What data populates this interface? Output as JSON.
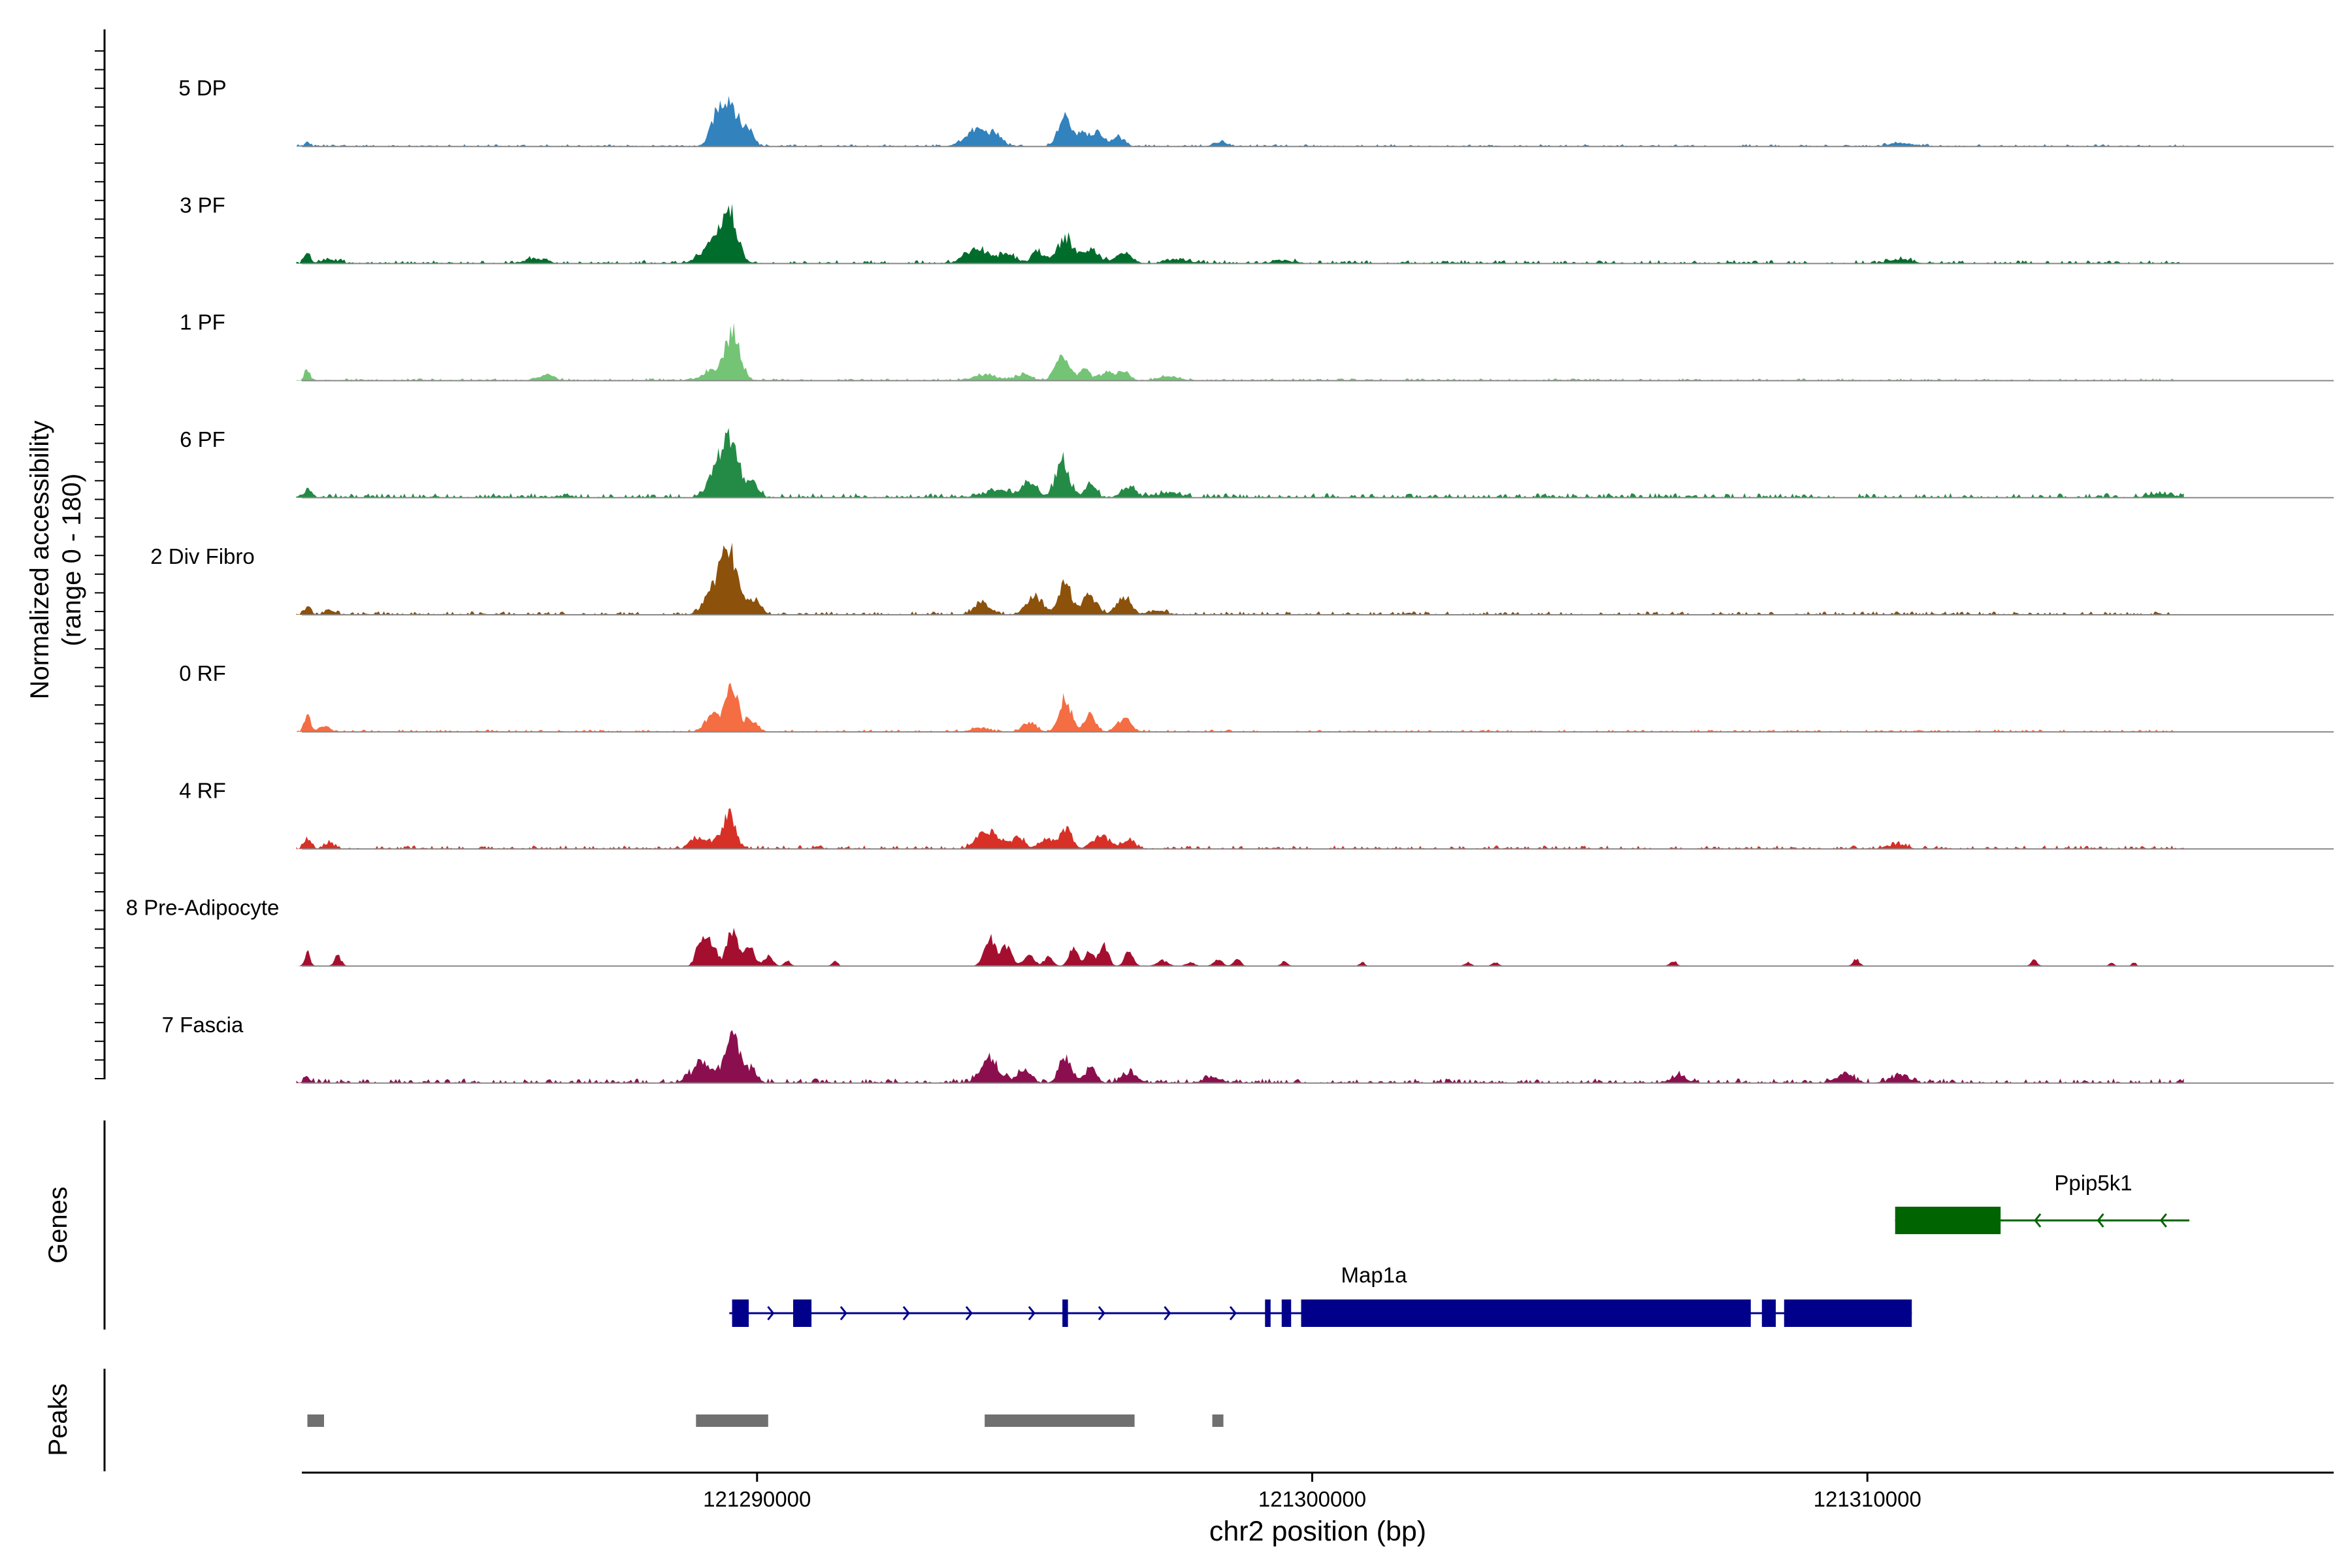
{
  "chart_data": {
    "type": "area",
    "title": "",
    "ylabel_line1": "Normalized accessibility",
    "ylabel_line2": "(range 0 - 180)",
    "ylim": [
      0,
      180
    ],
    "xlabel": "chr2 position (bp)",
    "xlim": [
      121281800,
      121318400
    ],
    "x_ticks": [
      121290000,
      121300000,
      121310000
    ],
    "x_tick_labels": [
      "121290000",
      "121300000",
      "121310000"
    ],
    "series": [
      {
        "name": "5 DP",
        "color": "#3182BD",
        "noise": 2,
        "peaks": [
          [
            121281900,
            10,
            40
          ],
          [
            121289500,
            100,
            150
          ],
          [
            121289250,
            45,
            110
          ],
          [
            121289850,
            35,
            90
          ],
          [
            121293950,
            35,
            200
          ],
          [
            121294300,
            20,
            120
          ],
          [
            121295550,
            62,
            120
          ],
          [
            121295850,
            25,
            80
          ],
          [
            121296100,
            30,
            130
          ],
          [
            121296500,
            20,
            100
          ],
          [
            121298350,
            10,
            120
          ],
          [
            121310600,
            8,
            200
          ]
        ]
      },
      {
        "name": "3 PF",
        "color": "#006D2C",
        "noise": 3,
        "peaks": [
          [
            121281900,
            22,
            50
          ],
          [
            121282300,
            8,
            150
          ],
          [
            121286000,
            10,
            180
          ],
          [
            121289500,
            95,
            150
          ],
          [
            121289200,
            40,
            200
          ],
          [
            121293950,
            32,
            200
          ],
          [
            121294500,
            20,
            150
          ],
          [
            121295050,
            28,
            100
          ],
          [
            121295550,
            52,
            140
          ],
          [
            121296000,
            30,
            150
          ],
          [
            121296600,
            22,
            140
          ],
          [
            121297600,
            8,
            200
          ],
          [
            121299500,
            6,
            200
          ],
          [
            121310600,
            8,
            200
          ]
        ]
      },
      {
        "name": "1 PF",
        "color": "#74C476",
        "noise": 2,
        "peaks": [
          [
            121281900,
            22,
            50
          ],
          [
            121286200,
            10,
            150
          ],
          [
            121289550,
            100,
            140
          ],
          [
            121289150,
            20,
            150
          ],
          [
            121294100,
            12,
            200
          ],
          [
            121294800,
            12,
            150
          ],
          [
            121295500,
            55,
            120
          ],
          [
            121295900,
            22,
            100
          ],
          [
            121296300,
            18,
            120
          ],
          [
            121296600,
            20,
            100
          ],
          [
            121297400,
            8,
            200
          ]
        ]
      },
      {
        "name": "6 PF",
        "color": "#238B45",
        "noise": 4,
        "peaks": [
          [
            121281900,
            14,
            80
          ],
          [
            121289500,
            115,
            150
          ],
          [
            121289250,
            45,
            150
          ],
          [
            121289900,
            35,
            110
          ],
          [
            121294300,
            14,
            250
          ],
          [
            121294900,
            28,
            150
          ],
          [
            121295500,
            74,
            120
          ],
          [
            121296000,
            30,
            100
          ],
          [
            121296700,
            24,
            120
          ],
          [
            121297400,
            10,
            200
          ],
          [
            121315300,
            8,
            200
          ]
        ]
      },
      {
        "name": "2 Div Fibro",
        "color": "#8C510A",
        "noise": 3,
        "peaks": [
          [
            121281900,
            14,
            60
          ],
          [
            121282300,
            8,
            100
          ],
          [
            121289500,
            125,
            150
          ],
          [
            121289200,
            50,
            150
          ],
          [
            121289950,
            30,
            110
          ],
          [
            121294050,
            22,
            150
          ],
          [
            121295000,
            38,
            150
          ],
          [
            121295550,
            74,
            110
          ],
          [
            121296000,
            40,
            120
          ],
          [
            121296600,
            36,
            130
          ],
          [
            121297200,
            8,
            150
          ]
        ]
      },
      {
        "name": "0 RF",
        "color": "#F46D43",
        "noise": 2,
        "peaks": [
          [
            121281900,
            42,
            50
          ],
          [
            121282200,
            10,
            100
          ],
          [
            121289550,
            100,
            110
          ],
          [
            121289200,
            35,
            130
          ],
          [
            121289900,
            25,
            100
          ],
          [
            121294000,
            8,
            150
          ],
          [
            121294900,
            20,
            120
          ],
          [
            121295550,
            70,
            110
          ],
          [
            121296000,
            35,
            100
          ],
          [
            121296600,
            28,
            120
          ]
        ]
      },
      {
        "name": "4 RF",
        "color": "#D73027",
        "noise": 3,
        "peaks": [
          [
            121281900,
            22,
            60
          ],
          [
            121282300,
            10,
            100
          ],
          [
            121289500,
            70,
            110
          ],
          [
            121288900,
            22,
            110
          ],
          [
            121289200,
            15,
            150
          ],
          [
            121294150,
            40,
            180
          ],
          [
            121294700,
            25,
            120
          ],
          [
            121295200,
            20,
            100
          ],
          [
            121295550,
            45,
            110
          ],
          [
            121296200,
            28,
            150
          ],
          [
            121296700,
            22,
            100
          ],
          [
            121310550,
            10,
            150
          ]
        ]
      },
      {
        "name": "8 Pre-Adipocyte",
        "color": "#A50F2F",
        "noise": 0,
        "peaks": [
          [
            121281900,
            30,
            50
          ],
          [
            121282450,
            22,
            60
          ],
          [
            121289000,
            60,
            90
          ],
          [
            121289200,
            45,
            80
          ],
          [
            121289550,
            72,
            100
          ],
          [
            121289850,
            50,
            90
          ],
          [
            121290200,
            20,
            80
          ],
          [
            121290550,
            10,
            60
          ],
          [
            121291400,
            12,
            50
          ],
          [
            121294200,
            65,
            100
          ],
          [
            121294500,
            40,
            90
          ],
          [
            121294900,
            25,
            90
          ],
          [
            121295250,
            20,
            80
          ],
          [
            121295700,
            40,
            80
          ],
          [
            121296000,
            35,
            70
          ],
          [
            121296250,
            42,
            80
          ],
          [
            121296700,
            30,
            80
          ],
          [
            121297300,
            12,
            100
          ],
          [
            121297800,
            8,
            80
          ],
          [
            121298300,
            15,
            80
          ],
          [
            121298650,
            18,
            60
          ],
          [
            121299500,
            10,
            60
          ],
          [
            121300900,
            8,
            50
          ],
          [
            121302800,
            8,
            60
          ],
          [
            121303300,
            8,
            60
          ],
          [
            121306500,
            12,
            60
          ],
          [
            121309800,
            14,
            60
          ],
          [
            121313000,
            12,
            60
          ],
          [
            121314400,
            8,
            40
          ],
          [
            121314800,
            8,
            40
          ]
        ]
      },
      {
        "name": "7 Fascia",
        "color": "#8B0F4E",
        "noise": 4,
        "peaks": [
          [
            121281900,
            10,
            60
          ],
          [
            121289000,
            40,
            180
          ],
          [
            121289550,
            98,
            130
          ],
          [
            121289900,
            30,
            100
          ],
          [
            121294200,
            50,
            160
          ],
          [
            121294800,
            22,
            130
          ],
          [
            121295550,
            52,
            110
          ],
          [
            121296000,
            30,
            110
          ],
          [
            121296700,
            22,
            130
          ],
          [
            121298200,
            12,
            150
          ],
          [
            121306600,
            14,
            150
          ],
          [
            121309600,
            18,
            150
          ],
          [
            121310600,
            18,
            150
          ]
        ]
      }
    ],
    "genes": [
      {
        "name": "Map1a",
        "color": "#00008B",
        "strand": "+",
        "start": 121289500,
        "end": 121310800,
        "exons": [
          [
            121289550,
            121289850
          ],
          [
            121290650,
            121290980
          ],
          [
            121295500,
            121295600
          ],
          [
            121299150,
            121299250
          ],
          [
            121299450,
            121299620
          ],
          [
            121299800,
            121307900
          ],
          [
            121308100,
            121308350
          ],
          [
            121308500,
            121310800
          ]
        ]
      },
      {
        "name": "Ppip5k1",
        "color": "#006400",
        "strand": "-",
        "start": 121310500,
        "end": 121315800,
        "exons": [
          [
            121310500,
            121312400
          ]
        ]
      }
    ],
    "gene_track_label": "Genes",
    "peaks_track_label": "Peaks",
    "peaks": [
      [
        121281900,
        121282200
      ],
      [
        121288900,
        121290200
      ],
      [
        121294100,
        121296800
      ],
      [
        121298200,
        121298400
      ]
    ]
  },
  "colors": {
    "baseline": "#888888",
    "peak": "#707070",
    "axis": "#000000"
  }
}
